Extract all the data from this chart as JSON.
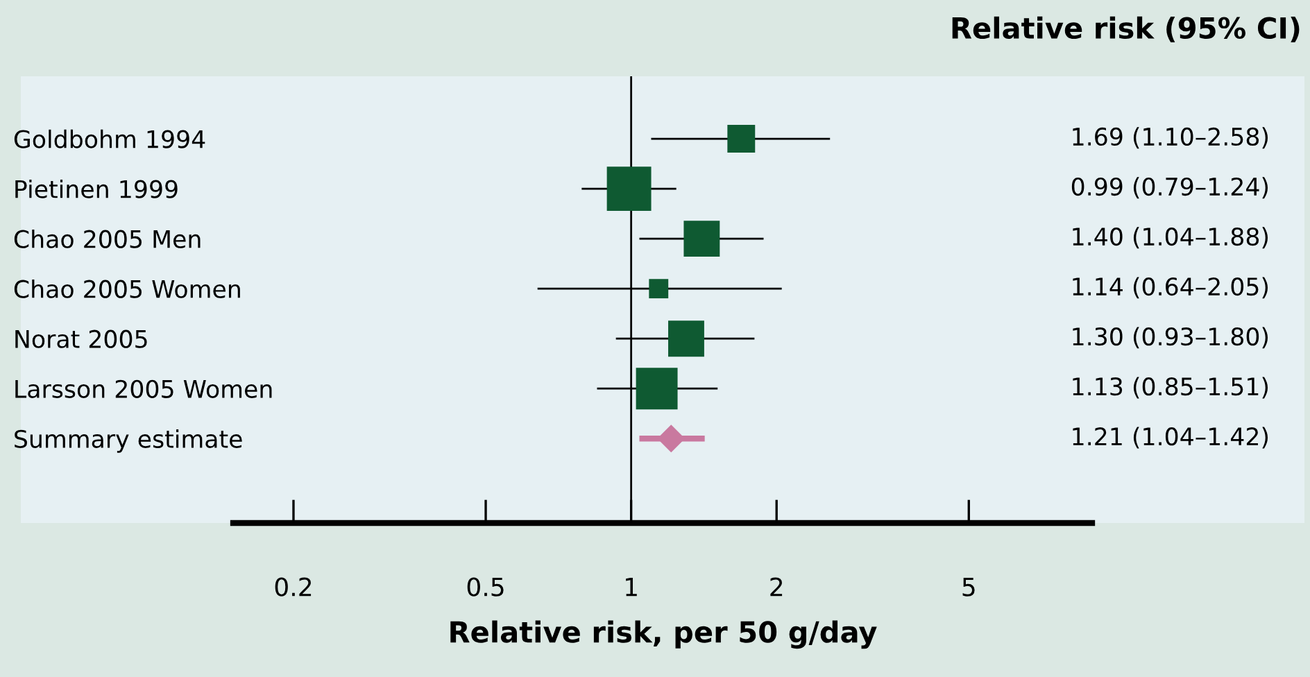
{
  "chart_data": {
    "type": "bubble",
    "orientation": "horizontal",
    "log": "x",
    "categories": [
      "Goldbohm 1994",
      "Pietinen 1999",
      "Chao 2005 Men",
      "Chao 2005 Women",
      "Norat 2005",
      "Larsson 2005 Women",
      "Summary estimate"
    ],
    "series": [
      {
        "type": "bubble",
        "color": "#0f5a32",
        "marker": "square",
        "values": [
          1.69,
          0.99,
          1.4,
          1.14,
          1.3,
          1.13,
          null
        ],
        "sizes": [
          0.39,
          1,
          0.66,
          0.19,
          0.66,
          0.88,
          null
        ],
        "errors": [
          [
            1.1,
            2.58
          ],
          [
            0.79,
            1.24
          ],
          [
            1.04,
            1.88
          ],
          [
            0.64,
            2.05
          ],
          [
            0.93,
            1.8
          ],
          [
            0.85,
            1.51
          ],
          null
        ]
      },
      {
        "type": "scatter",
        "color": "#c9799f",
        "marker": "diamond",
        "values": [
          null,
          null,
          null,
          null,
          null,
          null,
          1.21
        ],
        "errors": [
          null,
          null,
          null,
          null,
          null,
          null,
          [
            1.04,
            1.42
          ]
        ]
      }
    ],
    "value_labels": [
      "1.69 (1.10–2.58)",
      "0.99 (0.79–1.24)",
      "1.40 (1.04–1.88)",
      "1.14 (0.64–2.05)",
      "1.30 (0.93–1.80)",
      "1.13 (0.85–1.51)",
      "1.21 (1.04–1.42)"
    ],
    "xlim": [
      0.15,
      9
    ],
    "xticks": [
      0.2,
      0.5,
      1,
      2,
      5
    ],
    "ref_lines": [
      {
        "axis": "x",
        "value": 1,
        "label": null,
        "color": "#000000"
      }
    ],
    "xlabel": "Relative risk, per 50 g/day",
    "annotations": [
      "Relative risk (95% CI)"
    ],
    "grid": false,
    "legend": false
  }
}
